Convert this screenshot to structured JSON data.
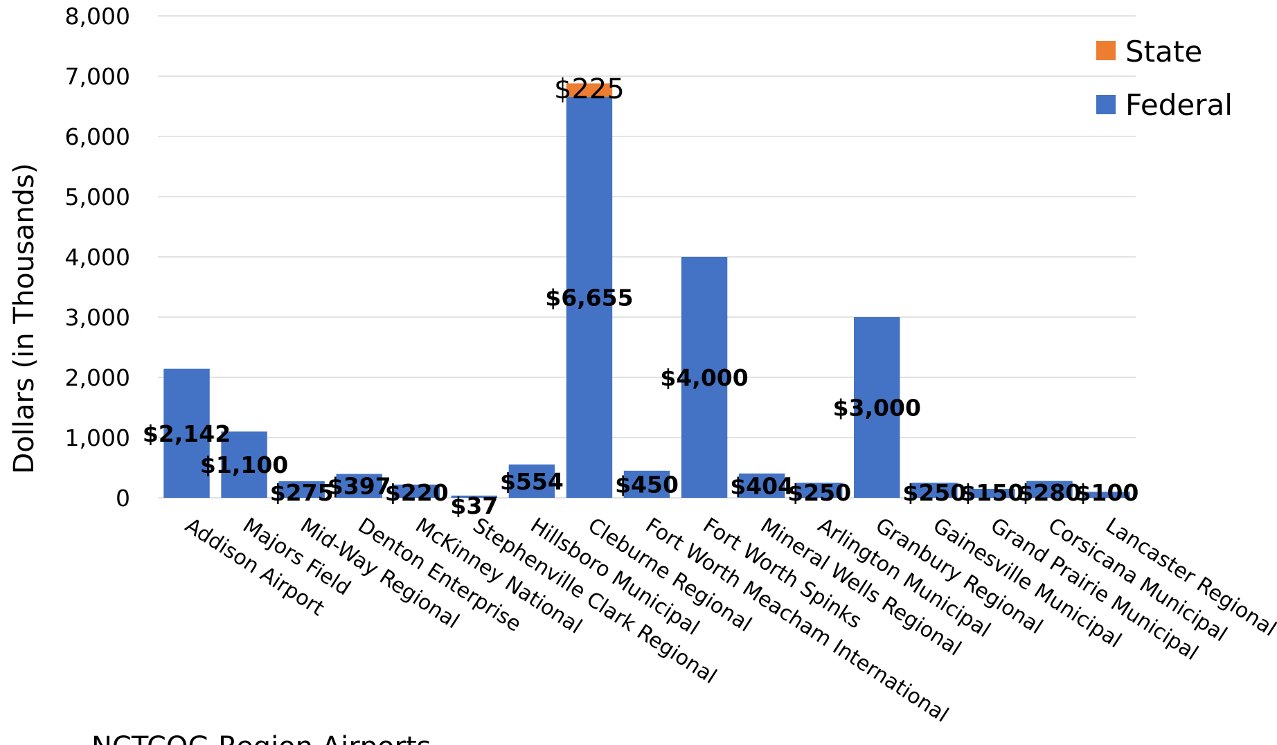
{
  "chart_data": {
    "type": "bar",
    "stacked": true,
    "ylabel": "Dollars     (in Thousands)",
    "ylim": [
      0,
      8000
    ],
    "yticks": [
      0,
      1000,
      2000,
      3000,
      4000,
      5000,
      6000,
      7000,
      8000
    ],
    "ytick_labels": [
      "0",
      "1,000",
      "2,000",
      "3,000",
      "4,000",
      "5,000",
      "6,000",
      "7,000",
      "8,000"
    ],
    "grid": true,
    "legend_position": "top-right",
    "categories": [
      "Addison Airport",
      "Majors Field",
      "Mid-Way Regional",
      "Denton Enterprise",
      "McKinney National",
      "Stephenville Clark Regional",
      "Hillsboro Municipal",
      "Cleburne Regional",
      "Fort Worth Meacham International",
      "Fort Worth Spinks",
      "Mineral Wells Regional",
      "Arlington Municipal",
      "Granbury Regional",
      "Gainesville Municipal",
      "Grand Prairie Municipal",
      "Corsicana Municipal",
      "Lancaster Regional"
    ],
    "series": [
      {
        "name": "Federal",
        "color": "#4472C4",
        "values": [
          2142,
          1100,
          275,
          397,
          220,
          37,
          554,
          6655,
          450,
          4000,
          404,
          250,
          3000,
          250,
          150,
          280,
          100
        ],
        "labels": [
          "$2,142",
          "$1,100",
          "$275",
          "$397",
          "$220",
          "$37",
          "$554",
          "$6,655",
          "$450",
          "$4,000",
          "$404",
          "$250",
          "$3,000",
          "$250",
          "$150",
          "$280",
          "$100"
        ]
      },
      {
        "name": "State",
        "color": "#ED7D31",
        "values": [
          0,
          0,
          0,
          0,
          0,
          0,
          0,
          225,
          0,
          0,
          0,
          0,
          0,
          0,
          0,
          0,
          0
        ],
        "labels": [
          "",
          "",
          "",
          "",
          "",
          "",
          "",
          "$225",
          "",
          "",
          "",
          "",
          "",
          "",
          "",
          "",
          ""
        ]
      }
    ],
    "legend": [
      "State",
      "Federal"
    ]
  },
  "footer_text": "NCTCOG Region Airports"
}
